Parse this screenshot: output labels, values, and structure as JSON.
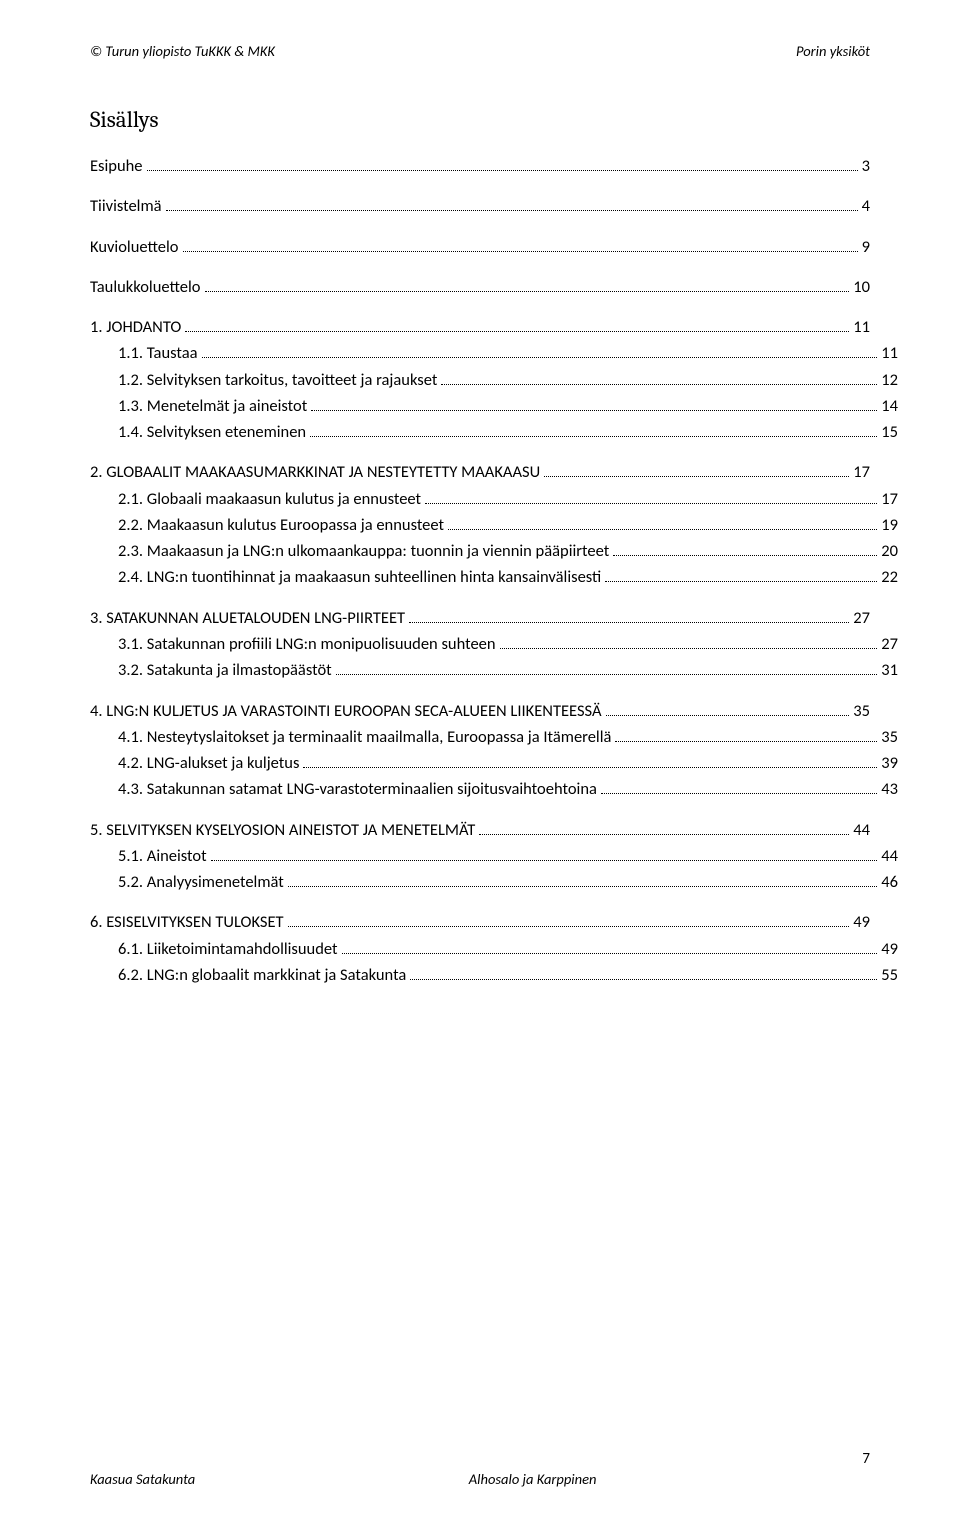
{
  "header": {
    "left": "© Turun yliopisto TuKKK & MKK",
    "right": "Porin yksiköt"
  },
  "toc_title": "Sisällys",
  "toc": [
    {
      "label": "Esipuhe",
      "page": "3",
      "level": 0
    },
    {
      "label": "Tiivistelmä",
      "page": "4",
      "level": 0
    },
    {
      "label": "Kuvioluettelo",
      "page": "9",
      "level": 0
    },
    {
      "label": "Taulukkoluettelo",
      "page": "10",
      "level": 0
    },
    {
      "label": "1. JOHDANTO",
      "page": "11",
      "level": 0
    },
    {
      "label": "1.1. Taustaa",
      "page": "11",
      "level": 1
    },
    {
      "label": "1.2. Selvityksen tarkoitus, tavoitteet ja rajaukset",
      "page": "12",
      "level": 1
    },
    {
      "label": "1.3. Menetelmät ja aineistot",
      "page": "14",
      "level": 1
    },
    {
      "label": "1.4. Selvityksen eteneminen",
      "page": "15",
      "level": 1
    },
    {
      "label": "2. GLOBAALIT MAAKAASUMARKKINAT JA NESTEYTETTY MAAKAASU",
      "page": "17",
      "level": 0
    },
    {
      "label": "2.1. Globaali maakaasun kulutus ja ennusteet",
      "page": "17",
      "level": 1
    },
    {
      "label": "2.2. Maakaasun kulutus Euroopassa ja ennusteet",
      "page": "19",
      "level": 1
    },
    {
      "label": "2.3. Maakaasun ja LNG:n ulkomaankauppa: tuonnin ja viennin pääpiirteet",
      "page": "20",
      "level": 1
    },
    {
      "label": "2.4. LNG:n tuontihinnat ja maakaasun suhteellinen hinta kansainvälisesti",
      "page": "22",
      "level": 1
    },
    {
      "label": "3. SATAKUNNAN ALUETALOUDEN LNG-PIIRTEET",
      "page": "27",
      "level": 0
    },
    {
      "label": "3.1. Satakunnan profiili LNG:n monipuolisuuden suhteen",
      "page": "27",
      "level": 1
    },
    {
      "label": "3.2. Satakunta ja ilmastopäästöt",
      "page": "31",
      "level": 1
    },
    {
      "label": "4. LNG:N KULJETUS JA VARASTOINTI EUROOPAN SECA-ALUEEN LIIKENTEESSÄ",
      "page": "35",
      "level": 0
    },
    {
      "label": "4.1. Nesteytyslaitokset ja terminaalit maailmalla, Euroopassa ja Itämerellä",
      "page": "35",
      "level": 1
    },
    {
      "label": "4.2. LNG-alukset ja kuljetus",
      "page": "39",
      "level": 1
    },
    {
      "label": "4.3. Satakunnan satamat LNG-varastoterminaalien sijoitusvaihtoehtoina",
      "page": "43",
      "level": 1
    },
    {
      "label": "5. SELVITYKSEN KYSELYOSION AINEISTOT JA MENETELMÄT",
      "page": "44",
      "level": 0
    },
    {
      "label": "5.1. Aineistot",
      "page": "44",
      "level": 1
    },
    {
      "label": "5.2. Analyysimenetelmät",
      "page": "46",
      "level": 1
    },
    {
      "label": "6. ESISELVITYKSEN TULOKSET",
      "page": "49",
      "level": 0
    },
    {
      "label": "6.1. Liiketoimintamahdollisuudet",
      "page": "49",
      "level": 1
    },
    {
      "label": "6.2. LNG:n globaalit markkinat ja Satakunta",
      "page": "55",
      "level": 1
    }
  ],
  "footer": {
    "page_number": "7",
    "left": "Kaasua Satakunta",
    "center": "Alhosalo ja Karppinen"
  }
}
